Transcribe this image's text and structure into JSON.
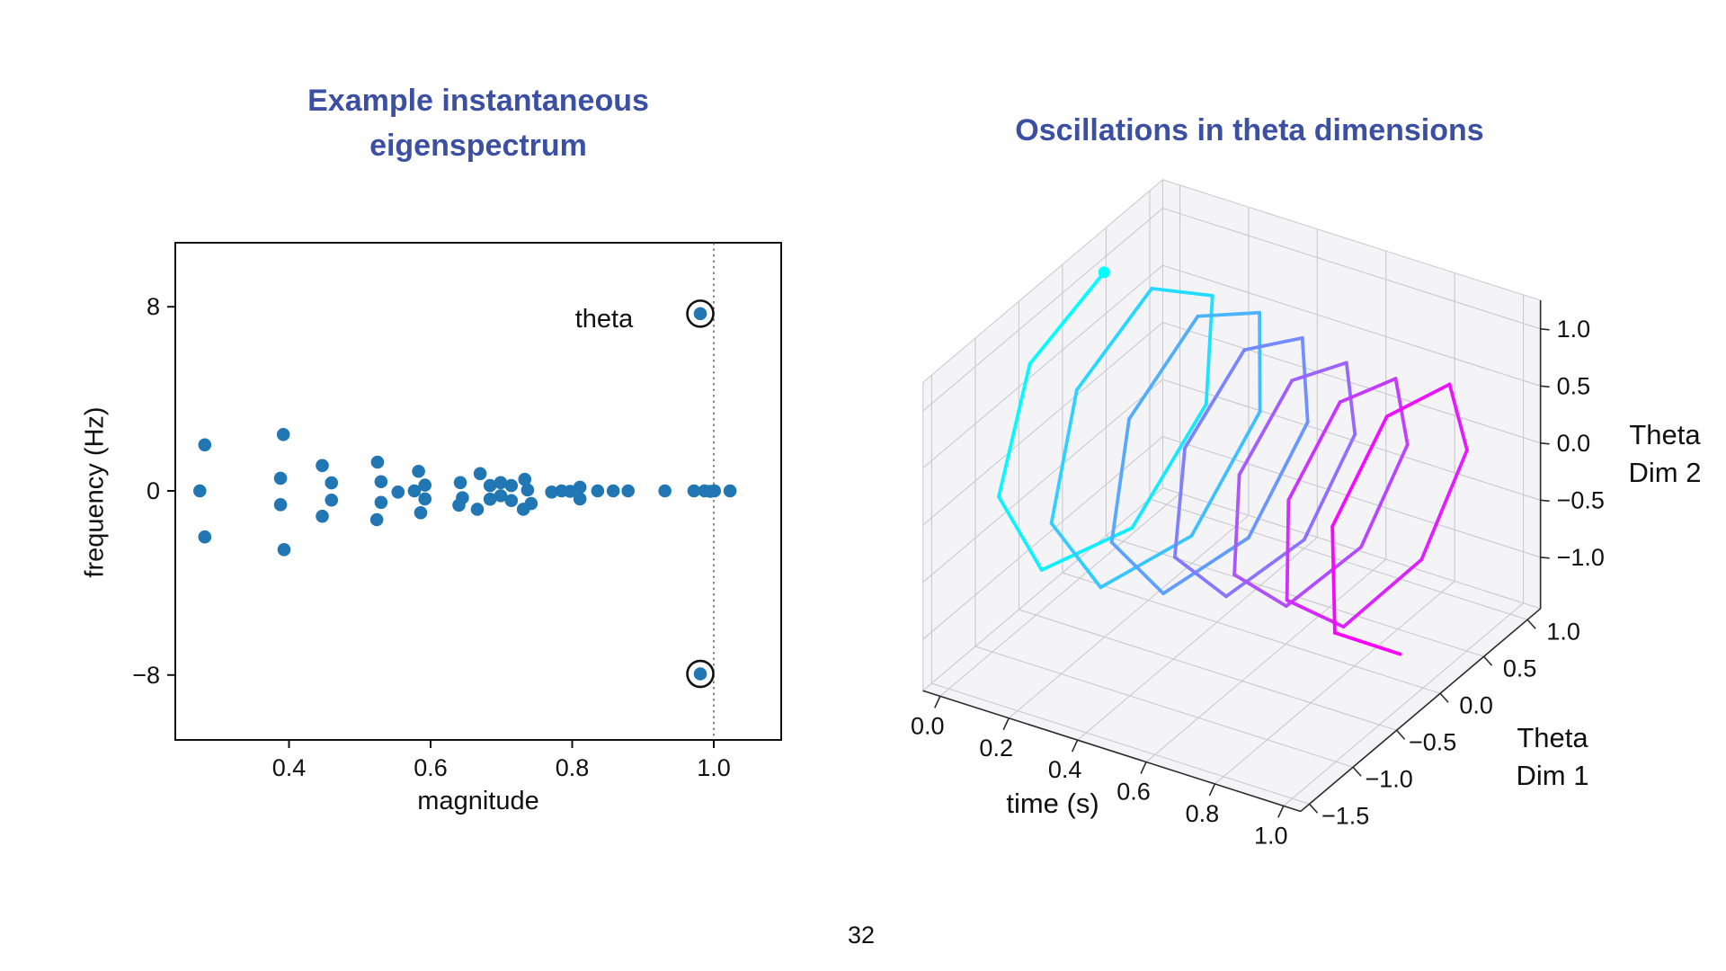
{
  "slide": {
    "page_number": "32"
  },
  "colors": {
    "title_blue": "#3b4fa3",
    "scatter_blue": "#2077b4",
    "ring_black": "#111111",
    "trajectory_start": "#00ffff",
    "trajectory_end": "#ff00ff",
    "pane_gray": "#ededf2",
    "grid_gray": "#c9c9ce",
    "axis_dark": "#2a2a2a"
  },
  "chart_data": [
    {
      "type": "scatter",
      "title": "Example instantaneous\neigenspectrum",
      "xlabel": "magnitude",
      "ylabel": "frequency (Hz)",
      "xlim": [
        0.239,
        1.095
      ],
      "ylim": [
        -10.8,
        10.8
      ],
      "xtick_values": [
        0.4,
        0.6,
        0.8,
        1.0
      ],
      "xtick_labels": [
        "0.4",
        "0.6",
        "0.8",
        "1.0"
      ],
      "ytick_values": [
        8,
        0,
        -8
      ],
      "ytick_labels": [
        "8",
        "0",
        "−8"
      ],
      "grid": false,
      "vline_x": 1.0,
      "marker_color": "#2077b4",
      "annotation": {
        "text": "theta",
        "x": 0.886,
        "y": 7.5
      },
      "points": [
        [
          0.281,
          2.0
        ],
        [
          0.274,
          0.0
        ],
        [
          0.281,
          -2.0
        ],
        [
          0.392,
          2.45
        ],
        [
          0.388,
          0.55
        ],
        [
          0.388,
          -0.6
        ],
        [
          0.393,
          -2.55
        ],
        [
          0.447,
          1.1
        ],
        [
          0.46,
          0.35
        ],
        [
          0.46,
          -0.4
        ],
        [
          0.447,
          -1.1
        ],
        [
          0.525,
          1.25
        ],
        [
          0.53,
          0.4
        ],
        [
          0.53,
          -0.5
        ],
        [
          0.524,
          -1.25
        ],
        [
          0.554,
          -0.05
        ],
        [
          0.583,
          0.85
        ],
        [
          0.577,
          0.0
        ],
        [
          0.592,
          0.25
        ],
        [
          0.592,
          -0.35
        ],
        [
          0.586,
          -0.95
        ],
        [
          0.642,
          0.36
        ],
        [
          0.645,
          -0.3
        ],
        [
          0.64,
          -0.62
        ],
        [
          0.67,
          0.75
        ],
        [
          0.666,
          -0.8
        ],
        [
          0.684,
          0.23
        ],
        [
          0.684,
          -0.36
        ],
        [
          0.699,
          0.36
        ],
        [
          0.699,
          -0.21
        ],
        [
          0.714,
          0.23
        ],
        [
          0.714,
          -0.42
        ],
        [
          0.731,
          -0.8
        ],
        [
          0.733,
          0.5
        ],
        [
          0.737,
          0.04
        ],
        [
          0.742,
          -0.55
        ],
        [
          0.771,
          -0.05
        ],
        [
          0.785,
          0.0
        ],
        [
          0.797,
          -0.02
        ],
        [
          0.811,
          0.16
        ],
        [
          0.811,
          -0.35
        ],
        [
          0.836,
          0.0
        ],
        [
          0.858,
          0.0
        ],
        [
          0.879,
          0.0
        ],
        [
          0.931,
          0.0
        ],
        [
          0.972,
          0.0
        ],
        [
          0.987,
          0.0
        ],
        [
          0.995,
          -0.02
        ],
        [
          1.001,
          0.0
        ],
        [
          1.023,
          0.0
        ]
      ],
      "circled_points": [
        [
          0.981,
          7.7
        ],
        [
          0.981,
          -7.95
        ]
      ]
    },
    {
      "type": "line3d",
      "title": "Oscillations in theta dimensions",
      "xlabel": "time (s)",
      "ylabel": "Theta\nDim 1",
      "zlabel": "Theta\nDim 2",
      "xlim": [
        0.0,
        1.0
      ],
      "ylim": [
        -1.5,
        1.0
      ],
      "zlim": [
        -1.0,
        1.0
      ],
      "xtick_values": [
        0.0,
        0.2,
        0.4,
        0.6,
        0.8,
        1.0
      ],
      "xtick_labels": [
        "0.0",
        "0.2",
        "0.4",
        "0.6",
        "0.8",
        "1.0"
      ],
      "ytick_values": [
        1.0,
        0.5,
        0.0,
        -0.5,
        -1.0,
        -1.5
      ],
      "ytick_labels": [
        "1.0",
        "0.5",
        "0.0",
        "−0.5",
        "−1.0",
        "−1.5"
      ],
      "ztick_values": [
        1.0,
        0.5,
        0.0,
        -0.5,
        -1.0
      ],
      "ztick_labels": [
        "1.0",
        "0.5",
        "0.0",
        "−0.5",
        "−1.0"
      ],
      "grid": true,
      "colormap": [
        "#00ffff",
        "#ff00ff"
      ],
      "trajectory": {
        "model": "helix (theta-band oscillation in 2 latent dims over time)",
        "duration_s": 1.0,
        "n_points": 46,
        "freq_hz": 6.5,
        "start_phase_deg": 75,
        "amplitude": 1.0,
        "amp_mod_depth": 0.12,
        "amp_mod_freq_hz": 0.9,
        "amp_mod_phase_deg": 45,
        "dim1_eq": "amp(t)*cos(2*pi*freq_hz*t + start_phase)",
        "dim2_eq": "amp(t)*sin(2*pi*freq_hz*t + start_phase)",
        "start_marker": true
      }
    }
  ]
}
